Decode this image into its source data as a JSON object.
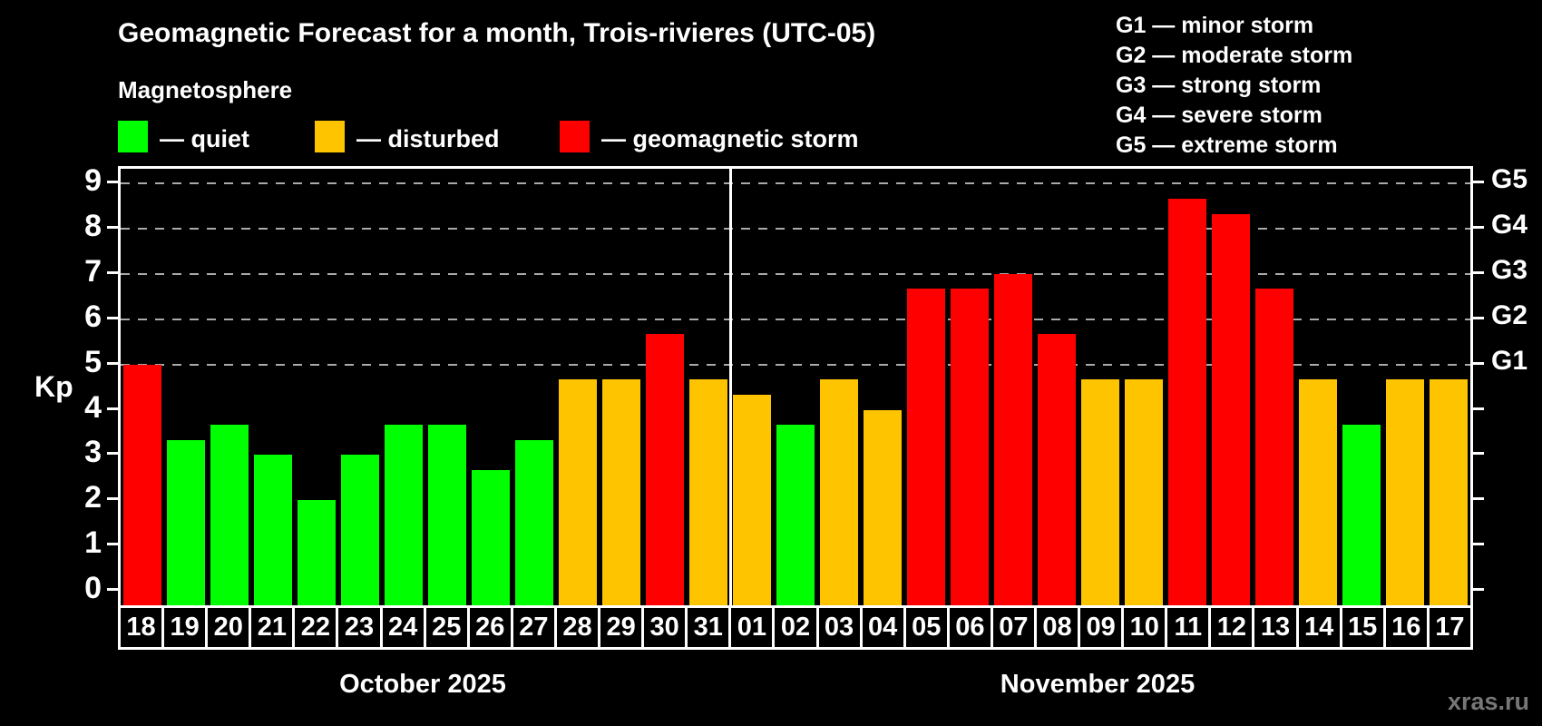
{
  "title": "Geomagnetic Forecast for a month, Trois-rivieres (UTC-05)",
  "subtitle": "Magnetosphere",
  "legend": {
    "quiet": "— quiet",
    "disturbed": "— disturbed",
    "storm": "— geomagnetic storm"
  },
  "g_scale_legend": [
    "G1 — minor storm",
    "G2 — moderate storm",
    "G3 — strong storm",
    "G4 — severe storm",
    "G5 — extreme storm"
  ],
  "colors": {
    "quiet": "#00ff00",
    "disturbed": "#ffc400",
    "storm": "#ff0000",
    "grid": "#aaaaaa",
    "axis": "#ffffff",
    "watermark": "#777777"
  },
  "axis": {
    "kp_label": "Kp",
    "y_ticks": [
      0,
      1,
      2,
      3,
      4,
      5,
      6,
      7,
      8,
      9
    ],
    "grid_levels": [
      5,
      6,
      7,
      8,
      9
    ],
    "right_labels": [
      {
        "label": "G1",
        "kp": 5
      },
      {
        "label": "G2",
        "kp": 6
      },
      {
        "label": "G3",
        "kp": 7
      },
      {
        "label": "G4",
        "kp": 8
      },
      {
        "label": "G5",
        "kp": 9
      }
    ]
  },
  "watermark": "xras.ru",
  "chart_data": {
    "type": "bar",
    "title": "Geomagnetic Forecast for a month, Trois-rivieres (UTC-05)",
    "ylabel": "Kp",
    "ylim": [
      0,
      9
    ],
    "grid": "dashed horizontal at Kp 5-9 only",
    "legend_position": "top-left",
    "months": [
      {
        "label": "October 2025",
        "days": 14
      },
      {
        "label": "November 2025",
        "days": 17
      }
    ],
    "x": [
      "18",
      "19",
      "20",
      "21",
      "22",
      "23",
      "24",
      "25",
      "26",
      "27",
      "28",
      "29",
      "30",
      "31",
      "01",
      "02",
      "03",
      "04",
      "05",
      "06",
      "07",
      "08",
      "09",
      "10",
      "11",
      "12",
      "13",
      "14",
      "15",
      "16",
      "17"
    ],
    "values": [
      5.0,
      3.33,
      3.67,
      3.0,
      2.0,
      3.0,
      3.67,
      3.67,
      2.67,
      3.33,
      4.67,
      4.67,
      5.67,
      4.67,
      4.33,
      3.67,
      4.67,
      4.0,
      6.67,
      6.67,
      7.0,
      5.67,
      4.67,
      4.67,
      8.67,
      8.33,
      6.67,
      4.67,
      3.67,
      4.67,
      4.67
    ],
    "status": [
      "storm",
      "quiet",
      "quiet",
      "quiet",
      "quiet",
      "quiet",
      "quiet",
      "quiet",
      "quiet",
      "quiet",
      "disturbed",
      "disturbed",
      "storm",
      "disturbed",
      "disturbed",
      "quiet",
      "disturbed",
      "disturbed",
      "storm",
      "storm",
      "storm",
      "storm",
      "disturbed",
      "disturbed",
      "storm",
      "storm",
      "storm",
      "disturbed",
      "quiet",
      "disturbed",
      "disturbed"
    ]
  }
}
